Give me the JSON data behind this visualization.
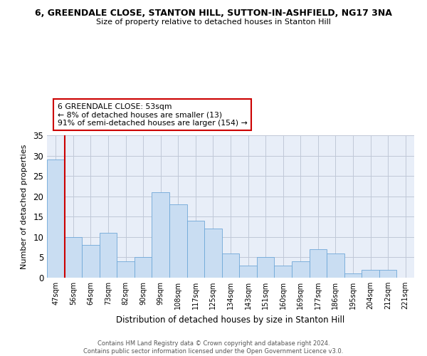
{
  "title": "6, GREENDALE CLOSE, STANTON HILL, SUTTON-IN-ASHFIELD, NG17 3NA",
  "subtitle": "Size of property relative to detached houses in Stanton Hill",
  "xlabel": "Distribution of detached houses by size in Stanton Hill",
  "ylabel": "Number of detached properties",
  "categories": [
    "47sqm",
    "56sqm",
    "64sqm",
    "73sqm",
    "82sqm",
    "90sqm",
    "99sqm",
    "108sqm",
    "117sqm",
    "125sqm",
    "134sqm",
    "143sqm",
    "151sqm",
    "160sqm",
    "169sqm",
    "177sqm",
    "186sqm",
    "195sqm",
    "204sqm",
    "212sqm",
    "221sqm"
  ],
  "values": [
    29,
    10,
    8,
    11,
    4,
    5,
    21,
    18,
    14,
    12,
    6,
    3,
    5,
    3,
    4,
    7,
    6,
    1,
    2,
    2,
    0
  ],
  "bar_color": "#c9ddf2",
  "bar_edge_color": "#6fa8d8",
  "highlight_line_color": "#cc0000",
  "annotation_text": "6 GREENDALE CLOSE: 53sqm\n← 8% of detached houses are smaller (13)\n91% of semi-detached houses are larger (154) →",
  "annotation_box_color": "#ffffff",
  "annotation_box_edge": "#cc0000",
  "ylim": [
    0,
    35
  ],
  "yticks": [
    0,
    5,
    10,
    15,
    20,
    25,
    30,
    35
  ],
  "background_color": "#e8eef8",
  "grid_color": "#c0c8d8",
  "footer": "Contains HM Land Registry data © Crown copyright and database right 2024.\nContains public sector information licensed under the Open Government Licence v3.0."
}
